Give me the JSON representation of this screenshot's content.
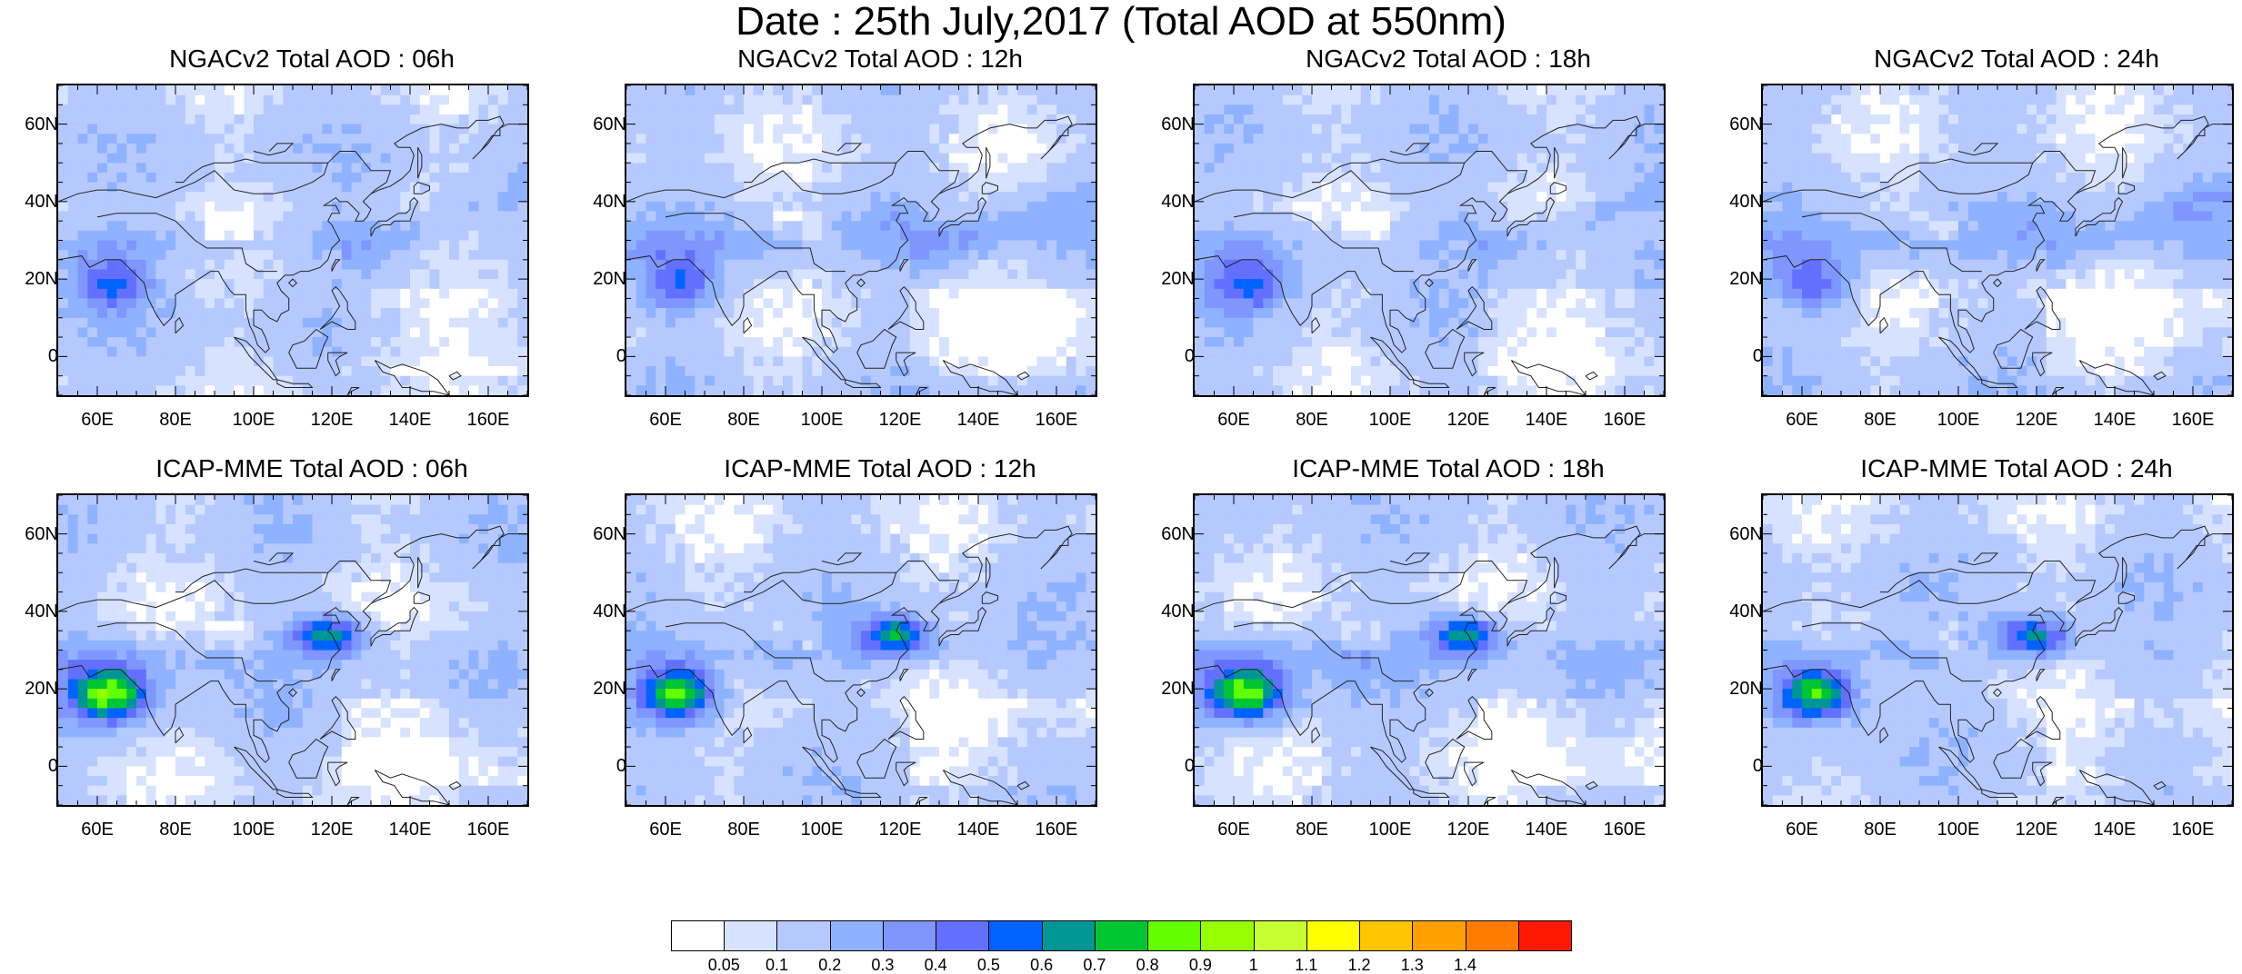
{
  "title": "Date : 25th July,2017 (Total AOD at 550nm)",
  "axes": {
    "lat_ticks": [
      "60N",
      "40N",
      "20N",
      "0"
    ],
    "lat_values": [
      60,
      40,
      20,
      0
    ],
    "lon_ticks": [
      "60E",
      "80E",
      "100E",
      "120E",
      "140E",
      "160E"
    ],
    "lon_values": [
      60,
      80,
      100,
      120,
      140,
      160
    ],
    "lon_range": [
      50,
      170
    ],
    "lat_range": [
      -10,
      70
    ]
  },
  "panels": [
    {
      "title": "NGACv2 Total AOD : 06h",
      "model": "NGACv2",
      "hour": "06h"
    },
    {
      "title": "NGACv2 Total AOD : 12h",
      "model": "NGACv2",
      "hour": "12h"
    },
    {
      "title": "NGACv2 Total AOD : 18h",
      "model": "NGACv2",
      "hour": "18h"
    },
    {
      "title": "NGACv2 Total AOD : 24h",
      "model": "NGACv2",
      "hour": "24h"
    },
    {
      "title": "ICAP-MME Total AOD : 06h",
      "model": "ICAP-MME",
      "hour": "06h"
    },
    {
      "title": "ICAP-MME Total AOD : 12h",
      "model": "ICAP-MME",
      "hour": "12h"
    },
    {
      "title": "ICAP-MME Total AOD : 18h",
      "model": "ICAP-MME",
      "hour": "18h"
    },
    {
      "title": "ICAP-MME Total AOD : 24h",
      "model": "ICAP-MME",
      "hour": "24h"
    }
  ],
  "colorbar": {
    "labels": [
      "0.05",
      "0.1",
      "0.2",
      "0.3",
      "0.4",
      "0.5",
      "0.6",
      "0.7",
      "0.8",
      "0.9",
      "1",
      "1.1",
      "1.2",
      "1.3",
      "1.4"
    ],
    "colors": [
      "#ffffff",
      "#d6e2ff",
      "#b5c9ff",
      "#8eb2ff",
      "#7f96ff",
      "#6370ff",
      "#0063ff",
      "#009696",
      "#00c633",
      "#63ff00",
      "#96ff00",
      "#c6ff33",
      "#ffff00",
      "#ffc600",
      "#ffa000",
      "#ff7c00",
      "#ff1900"
    ]
  }
}
